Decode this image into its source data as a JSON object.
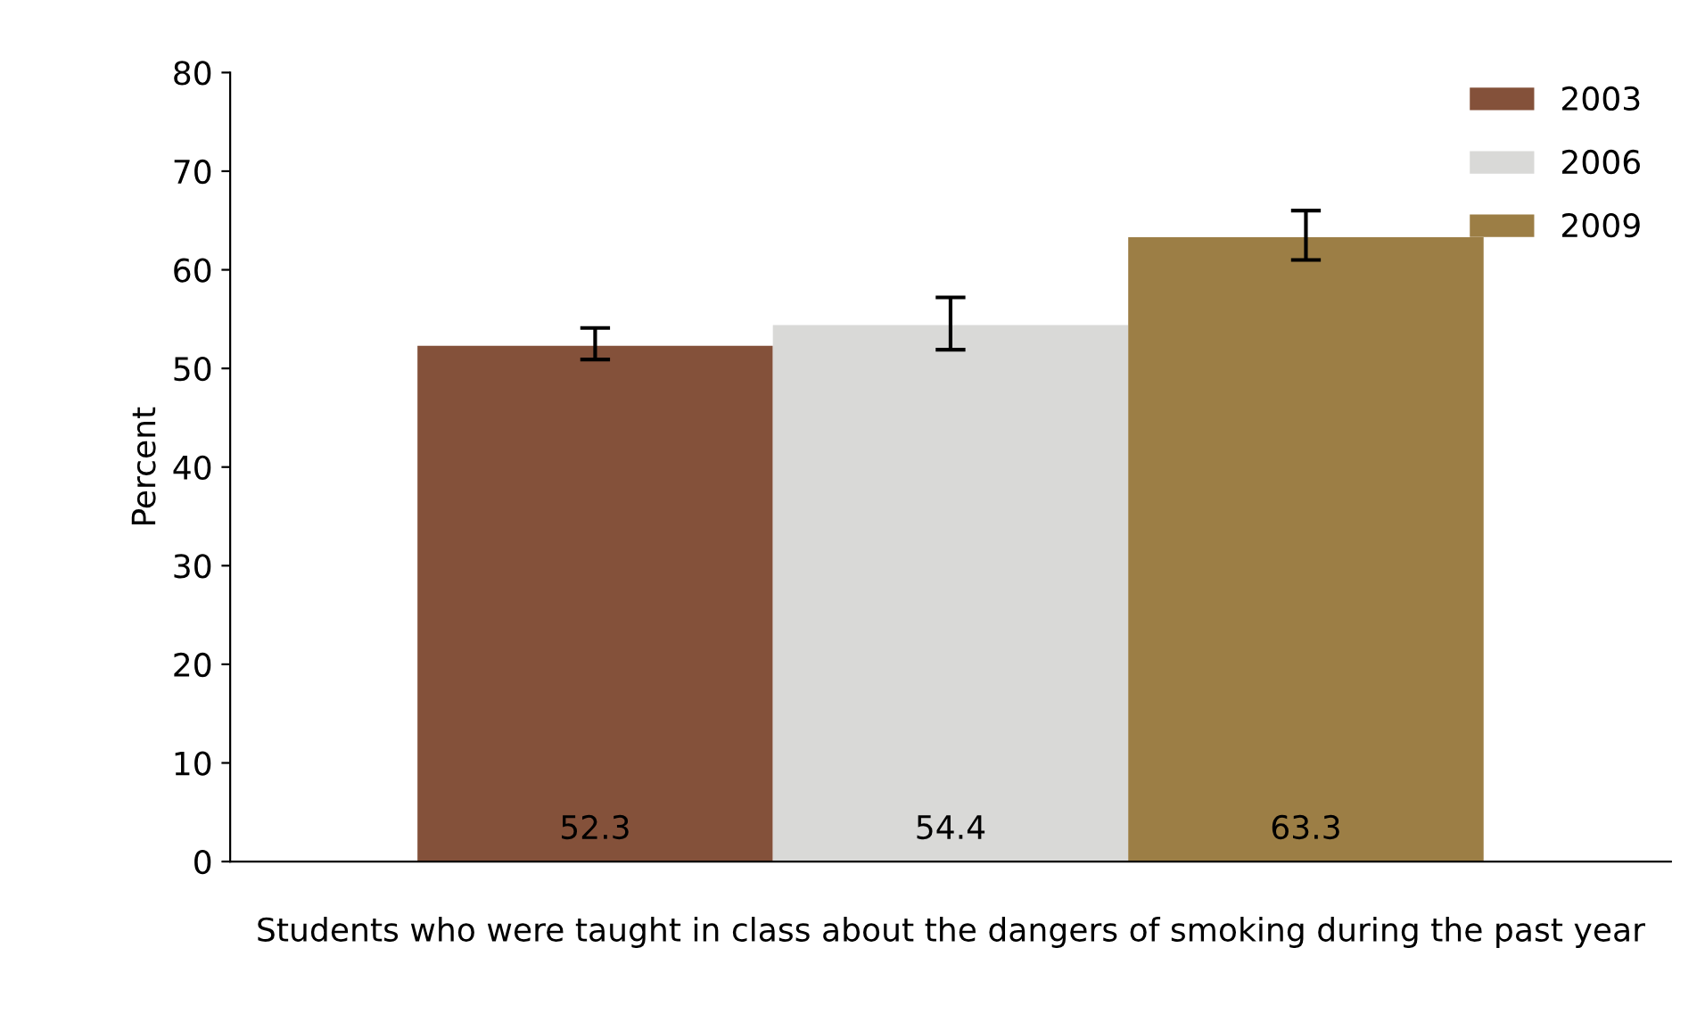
{
  "chart_data": {
    "type": "bar",
    "ylabel": "Percent",
    "categories": [
      "Students who were taught in class about the dangers of smoking during the past year"
    ],
    "series": [
      {
        "name": "2003",
        "color": "#84513a",
        "values": [
          52.3
        ],
        "errors": [
          [
            50.9,
            54.1
          ]
        ]
      },
      {
        "name": "2006",
        "color": "#d9d9d7",
        "values": [
          54.4
        ],
        "errors": [
          [
            51.9,
            57.2
          ]
        ]
      },
      {
        "name": "2009",
        "color": "#9c7e45",
        "values": [
          63.3
        ],
        "errors": [
          [
            61.0,
            66.0
          ]
        ]
      }
    ],
    "ylim": [
      0,
      80
    ],
    "yticks": [
      0,
      10,
      20,
      30,
      40,
      50,
      60,
      70,
      80
    ],
    "data_labels": true,
    "legend": "top right",
    "grid": false
  }
}
